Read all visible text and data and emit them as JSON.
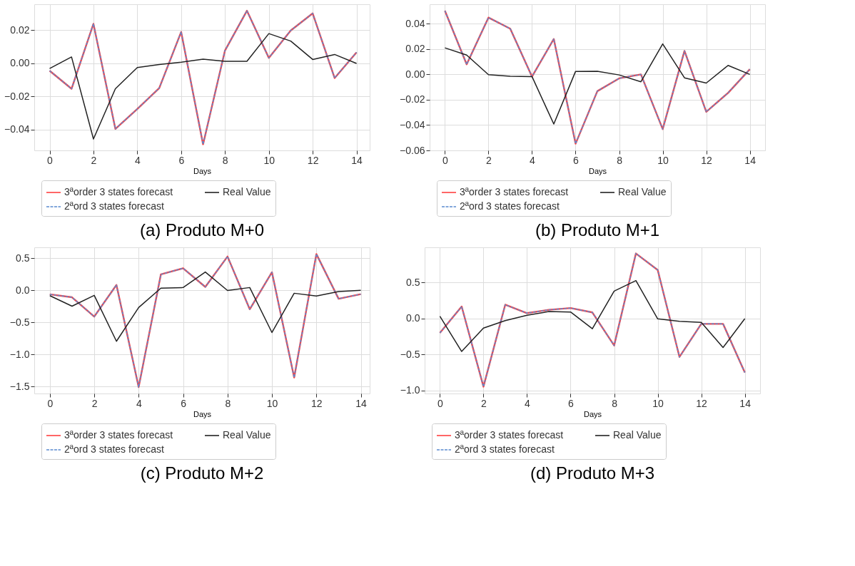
{
  "chart_data": [
    {
      "type": "line",
      "title": "(a) Produto M+0",
      "xlabel": "Days",
      "x": [
        0,
        1,
        2,
        3,
        4,
        5,
        6,
        7,
        8,
        9,
        10,
        11,
        12,
        13,
        14
      ],
      "xlim": [
        -0.7,
        14.6
      ],
      "xticks": [
        0,
        2,
        4,
        6,
        8,
        10,
        12,
        14
      ],
      "ylim": [
        -0.0525,
        0.0357
      ],
      "yticks": [
        {
          "value": -0.04,
          "label": "−0.04"
        },
        {
          "value": -0.02,
          "label": "−0.02"
        },
        {
          "value": 0,
          "label": "0.00"
        },
        {
          "value": 0.02,
          "label": "0.02"
        }
      ],
      "grid": true,
      "legend": "bottom",
      "marker": "none",
      "series": [
        {
          "name": "3ªorder 3 states forecast",
          "color": "#ff4040",
          "line_style": "solid",
          "values": [
            -0.0044,
            -0.0153,
            0.0239,
            -0.0395,
            -0.0275,
            -0.0149,
            0.019,
            -0.0488,
            0.0078,
            0.0318,
            0.0033,
            0.0199,
            0.0302,
            -0.0088,
            0.0067
          ]
        },
        {
          "name": "2ªord 3 states forecast",
          "color": "#5b8bd0",
          "line_style": "dashed",
          "values": [
            -0.0044,
            -0.0153,
            0.0239,
            -0.0395,
            -0.0275,
            -0.0149,
            0.019,
            -0.0488,
            0.0078,
            0.0318,
            0.0033,
            0.0199,
            0.0302,
            -0.0088,
            0.0067
          ]
        },
        {
          "name": "Real Value",
          "color": "#222222",
          "line_style": "solid",
          "values": [
            -0.0031,
            0.0039,
            -0.0456,
            -0.0153,
            -0.0025,
            -0.0007,
            0.0007,
            0.0026,
            0.0013,
            0.0013,
            0.018,
            0.0135,
            0.0024,
            0.0054,
            0
          ]
        }
      ]
    },
    {
      "type": "line",
      "title": "(b) Produto M+1",
      "xlabel": "Days",
      "x": [
        0,
        1,
        2,
        3,
        4,
        5,
        6,
        7,
        8,
        9,
        10,
        11,
        12,
        13,
        14
      ],
      "xlim": [
        -0.7,
        14.7
      ],
      "xticks": [
        0,
        2,
        4,
        6,
        8,
        10,
        12,
        14
      ],
      "ylim": [
        -0.06,
        0.0554
      ],
      "yticks": [
        {
          "value": -0.06,
          "label": "−0.06"
        },
        {
          "value": -0.04,
          "label": "−0.04"
        },
        {
          "value": -0.02,
          "label": "−0.02"
        },
        {
          "value": 0,
          "label": "0.00"
        },
        {
          "value": 0.02,
          "label": "0.02"
        },
        {
          "value": 0.04,
          "label": "0.04"
        }
      ],
      "grid": true,
      "legend": "bottom",
      "marker": "none",
      "series": [
        {
          "name": "3ªorder 3 states forecast",
          "color": "#ff4040",
          "line_style": "solid",
          "values": [
            0.0503,
            0.008,
            0.0449,
            0.0361,
            -0.0017,
            0.028,
            -0.0547,
            -0.0132,
            -0.0031,
            0,
            -0.0432,
            0.0186,
            -0.0295,
            -0.0146,
            0.0041
          ]
        },
        {
          "name": "2ªord 3 states forecast",
          "color": "#5b8bd0",
          "line_style": "dashed",
          "values": [
            0.0503,
            0.008,
            0.0449,
            0.0361,
            -0.0017,
            0.028,
            -0.0547,
            -0.0132,
            -0.0031,
            0,
            -0.0432,
            0.0186,
            -0.0295,
            -0.0146,
            0.0041
          ]
        },
        {
          "name": "Real Value",
          "color": "#222222",
          "line_style": "solid",
          "values": [
            0.021,
            0.0153,
            -0.0002,
            -0.0014,
            -0.0017,
            -0.0392,
            0.0024,
            0.0025,
            -0.0004,
            -0.0058,
            0.0241,
            -0.0027,
            -0.0068,
            0.0071,
            0
          ]
        }
      ]
    },
    {
      "type": "line",
      "title": "(c) Produto M+2",
      "xlabel": "Days",
      "x": [
        0,
        1,
        2,
        3,
        4,
        5,
        6,
        7,
        8,
        9,
        10,
        11,
        12,
        13,
        14
      ],
      "xlim": [
        -0.7,
        14.4
      ],
      "xticks": [
        0,
        2,
        4,
        6,
        8,
        10,
        12,
        14
      ],
      "ylim": [
        -1.61,
        0.67
      ],
      "yticks": [
        {
          "value": -1.5,
          "label": "−1.5"
        },
        {
          "value": -1,
          "label": "−1.0"
        },
        {
          "value": -0.5,
          "label": "−0.5"
        },
        {
          "value": 0,
          "label": "0.0"
        },
        {
          "value": 0.5,
          "label": "0.5"
        }
      ],
      "grid": true,
      "legend": "bottom",
      "marker": "none",
      "series": [
        {
          "name": "3ªorder 3 states forecast",
          "color": "#ff4040",
          "line_style": "solid",
          "values": [
            -0.063,
            -0.109,
            -0.41,
            0.083,
            -1.51,
            0.248,
            0.344,
            0.053,
            0.527,
            -0.295,
            0.281,
            -1.361,
            0.566,
            -0.132,
            -0.06
          ]
        },
        {
          "name": "2ªord 3 states forecast",
          "color": "#5b8bd0",
          "line_style": "dashed",
          "values": [
            -0.063,
            -0.109,
            -0.41,
            0.083,
            -1.51,
            0.248,
            0.344,
            0.053,
            0.527,
            -0.295,
            0.281,
            -1.361,
            0.566,
            -0.132,
            -0.06
          ]
        },
        {
          "name": "Real Value",
          "color": "#222222",
          "line_style": "solid",
          "values": [
            -0.083,
            -0.248,
            -0.079,
            -0.795,
            -0.268,
            0.033,
            0.043,
            0.285,
            -0.003,
            0.043,
            -0.659,
            -0.046,
            -0.089,
            -0.02,
            0
          ]
        }
      ]
    },
    {
      "type": "line",
      "title": "(d) Produto M+3",
      "xlabel": "Days",
      "x": [
        0,
        1,
        2,
        3,
        4,
        5,
        6,
        7,
        8,
        9,
        10,
        11,
        12,
        13,
        14
      ],
      "xlim": [
        -0.7,
        14.7
      ],
      "xticks": [
        0,
        2,
        4,
        6,
        8,
        10,
        12,
        14
      ],
      "ylim": [
        -1.04,
        0.99
      ],
      "yticks": [
        {
          "value": -1,
          "label": "−1.0"
        },
        {
          "value": -0.5,
          "label": "−0.5"
        },
        {
          "value": 0,
          "label": "0.0"
        },
        {
          "value": 0.5,
          "label": "0.5"
        }
      ],
      "grid": true,
      "legend": "bottom",
      "marker": "none",
      "series": [
        {
          "name": "3ªorder 3 states forecast",
          "color": "#ff4040",
          "line_style": "solid",
          "values": [
            -0.199,
            0.168,
            -0.945,
            0.193,
            0.076,
            0.122,
            0.147,
            0.086,
            -0.373,
            0.905,
            0.676,
            -0.532,
            -0.073,
            -0.073,
            -0.749
          ]
        },
        {
          "name": "2ªord 3 states forecast",
          "color": "#5b8bd0",
          "line_style": "dashed",
          "values": [
            -0.199,
            0.168,
            -0.945,
            0.193,
            0.076,
            0.122,
            0.147,
            0.086,
            -0.373,
            0.905,
            0.676,
            -0.532,
            -0.073,
            -0.073,
            -0.749
          ]
        },
        {
          "name": "Real Value",
          "color": "#222222",
          "line_style": "solid",
          "values": [
            0.034,
            -0.456,
            -0.131,
            -0.028,
            0.046,
            0.098,
            0.092,
            -0.141,
            0.382,
            0.529,
            -0.003,
            -0.037,
            -0.052,
            -0.401,
            0
          ]
        }
      ]
    }
  ]
}
